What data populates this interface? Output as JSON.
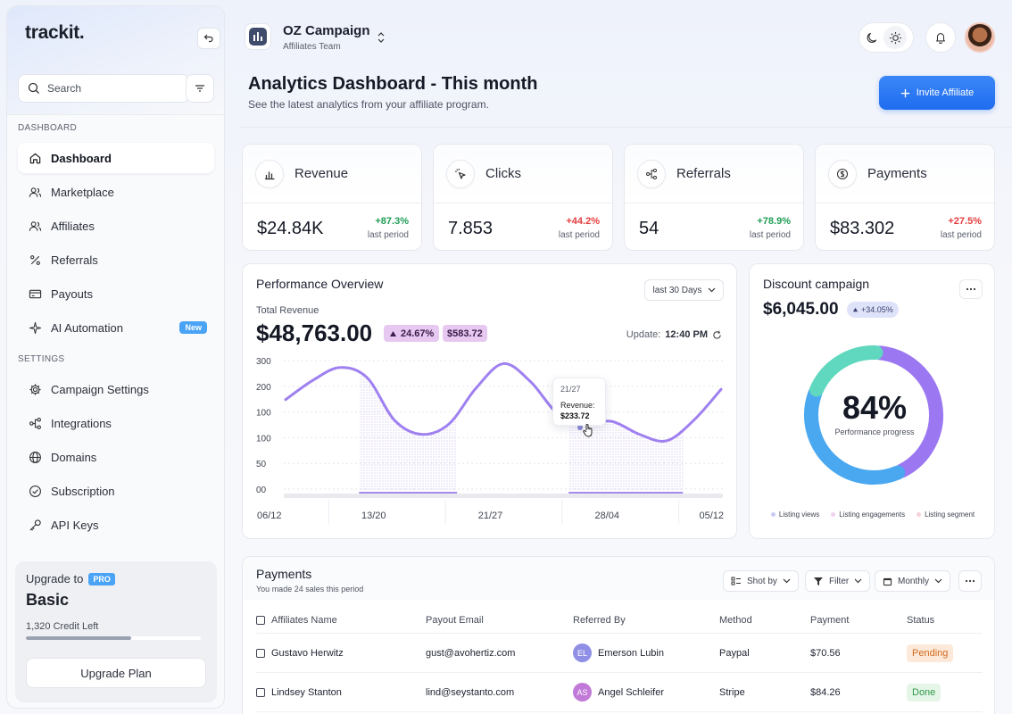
{
  "app": {
    "logo": "trackit."
  },
  "search": {
    "placeholder": "Search"
  },
  "sidebar": {
    "section_dashboard": "DASHBOARD",
    "section_settings": "SETTINGS",
    "main_items": [
      {
        "label": "Dashboard",
        "icon": "home-icon",
        "active": true
      },
      {
        "label": "Marketplace",
        "icon": "users-icon"
      },
      {
        "label": "Affiliates",
        "icon": "users-icon"
      },
      {
        "label": "Referrals",
        "icon": "percent-icon"
      },
      {
        "label": "Payouts",
        "icon": "card-icon"
      },
      {
        "label": "AI Automation",
        "icon": "sparkle-icon",
        "badge": "New"
      }
    ],
    "settings_items": [
      {
        "label": "Campaign Settings",
        "icon": "gear-icon"
      },
      {
        "label": "Integrations",
        "icon": "share-icon"
      },
      {
        "label": "Domains",
        "icon": "globe-icon"
      },
      {
        "label": "Subscription",
        "icon": "check-circle-icon"
      },
      {
        "label": "API Keys",
        "icon": "key-icon"
      }
    ],
    "upgrade": {
      "title": "Upgrade to",
      "pro_badge": "PRO",
      "plan": "Basic",
      "credit": "1,320 Credit Left",
      "credit_fraction": 0.6,
      "button": "Upgrade Plan"
    }
  },
  "header": {
    "campaign_title": "OZ Campaign",
    "campaign_team": "Affiliates Team",
    "page_title": "Analytics Dashboard - This month",
    "page_subtitle": "See the latest analytics from your affiliate program.",
    "invite_button": "Invite Affiliate"
  },
  "stats": [
    {
      "label": "Revenue",
      "icon": "bar-chart-icon",
      "value": "$24.84K",
      "change": "+87.3%",
      "trend": "up",
      "period": "last period"
    },
    {
      "label": "Clicks",
      "icon": "cursor-click-icon",
      "value": "7.853",
      "change": "+44.2%",
      "trend": "down",
      "period": "last period"
    },
    {
      "label": "Referrals",
      "icon": "share-icon",
      "value": "54",
      "change": "+78.9%",
      "trend": "up",
      "period": "last period"
    },
    {
      "label": "Payments",
      "icon": "dollar-circle-icon",
      "value": "$83.302",
      "change": "+27.5%",
      "trend": "down",
      "period": "last period"
    }
  ],
  "performance": {
    "title": "Performance Overview",
    "range_button": "last 30 Days",
    "total_label": "Total Revenue",
    "total_value": "$48,763.00",
    "pct_pill": "24.67%",
    "amount_pill": "$583.72",
    "update_label": "Update:",
    "update_time": "12:40 PM",
    "tooltip": {
      "date": "21/27",
      "label": "Revenue:",
      "value": "$233.72"
    }
  },
  "chart_data": {
    "type": "line",
    "y_tick_labels": [
      "300",
      "200",
      "100",
      "100",
      "50",
      "00"
    ],
    "x_tick_labels": [
      "06/12",
      "13/20",
      "21/27",
      "28/04",
      "05/12"
    ],
    "series": [
      {
        "values": [
          0.71,
          0.86,
          0.96,
          0.88,
          0.55,
          0.44,
          0.52,
          0.8,
          0.99,
          0.85,
          0.6,
          0.53,
          0.54,
          0.44,
          0.39,
          0.55,
          0.79
        ]
      }
    ],
    "grid": true,
    "highlight_ranges": [
      [
        2.7,
        6.3
      ],
      [
        10.4,
        14.6
      ]
    ]
  },
  "discount": {
    "title": "Discount campaign",
    "value": "$6,045.00",
    "pill": "+34.05%",
    "percent": "84%",
    "progress_label": "Performance progress",
    "legend": [
      {
        "label": "Listing views",
        "color": "#c8cdf2"
      },
      {
        "label": "Listing engagements",
        "color": "#efd3f1"
      },
      {
        "label": "Listing segment",
        "color": "#f6d2da"
      }
    ],
    "segments": [
      {
        "value": 42,
        "color": "#9b77f2"
      },
      {
        "value": 38,
        "color": "#4aa8f0"
      },
      {
        "value": 20,
        "color": "#5fd8bf"
      }
    ]
  },
  "payments": {
    "title": "Payments",
    "subtitle": "You made 24 sales this period",
    "buttons": {
      "sort": "Shot by",
      "filter": "Filter",
      "monthly": "Monthly"
    },
    "columns": [
      "Affiliates Name",
      "Payout Email",
      "Referred By",
      "Method",
      "Payment",
      "Status"
    ],
    "rows": [
      {
        "name": "Gustavo Herwitz",
        "email": "gust@avohertiz.com",
        "ref_initials": "EL",
        "ref_color": "#8f8fe6",
        "referred_by": "Emerson Lubin",
        "method": "Paypal",
        "payment": "$70.56",
        "status": "Pending"
      },
      {
        "name": "Lindsey Stanton",
        "email": "lind@seystanto.com",
        "ref_initials": "AS",
        "ref_color": "#c27ad8",
        "referred_by": "Angel Schleifer",
        "method": "Stripe",
        "payment": "$84.26",
        "status": "Done"
      }
    ]
  }
}
